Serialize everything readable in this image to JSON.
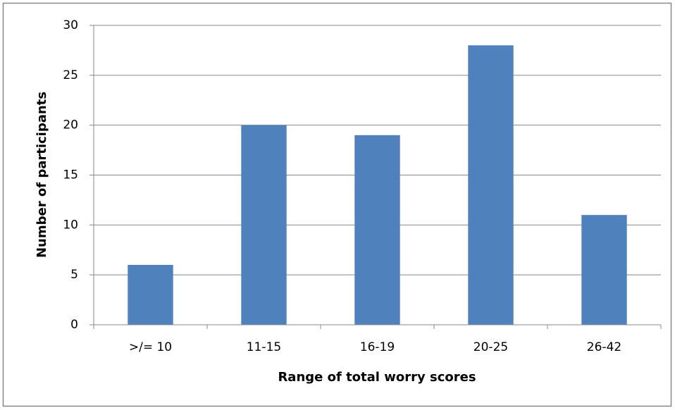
{
  "chart_data": {
    "type": "bar",
    "x_label": "Range of total worry scores",
    "y_label": "Number of participants",
    "categories": [
      ">/= 10",
      "11-15",
      "16-19",
      "20-25",
      "26-42"
    ],
    "values": [
      6,
      20,
      19,
      28,
      11
    ],
    "color": "#4f81bd",
    "ylim": [
      0,
      30
    ],
    "yticks": [
      0,
      5,
      10,
      15,
      20,
      25,
      30
    ],
    "grid": true
  }
}
